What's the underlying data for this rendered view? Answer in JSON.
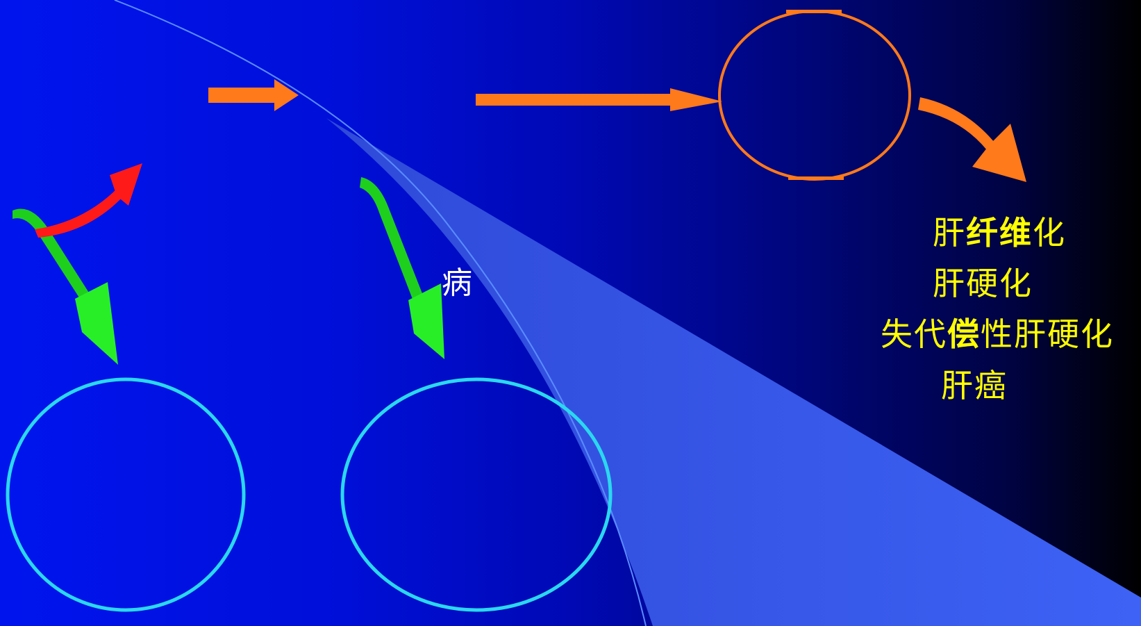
{
  "colors": {
    "background_left": "#0014ee",
    "background_right": "#000000",
    "wedge": "#3a5cf0",
    "cyan_circle": "#2ad8ee",
    "orange": "#ff7a1a",
    "green": "#22ee22",
    "red": "#ff1a1a",
    "label_text": "#ffff00",
    "white_text": "#ffffff"
  },
  "labels": {
    "disease_char": "病",
    "outcome_fibrosis_a": "肝",
    "outcome_fibrosis_b": "纤维",
    "outcome_fibrosis_c": "化",
    "outcome_cirrhosis": "肝硬化",
    "outcome_decompensated_a": "失代",
    "outcome_decompensated_b": "偿",
    "outcome_decompensated_c": "性肝硬化",
    "outcome_cancer": "肝癌"
  }
}
